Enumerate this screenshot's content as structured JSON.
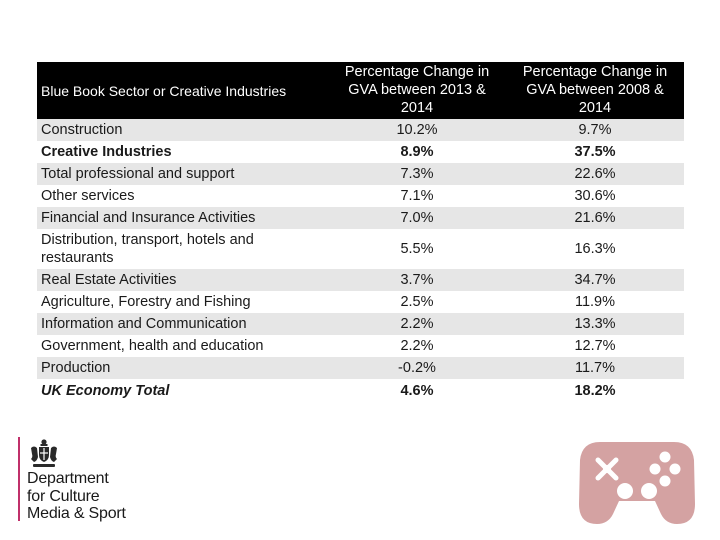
{
  "table": {
    "headers": [
      "Blue Book Sector or Creative Industries",
      "Percentage Change in GVA between 2013 & 2014",
      "Percentage Change in GVA between 2008 & 2014"
    ],
    "rows": [
      {
        "sector": "Construction",
        "change_2013_2014": "10.2%",
        "change_2008_2014": "9.7%"
      },
      {
        "sector": "Creative Industries",
        "change_2013_2014": "8.9%",
        "change_2008_2014": "37.5%"
      },
      {
        "sector": "Total professional and support",
        "change_2013_2014": "7.3%",
        "change_2008_2014": "22.6%"
      },
      {
        "sector": "Other services",
        "change_2013_2014": "7.1%",
        "change_2008_2014": "30.6%"
      },
      {
        "sector": "Financial and Insurance Activities",
        "change_2013_2014": "7.0%",
        "change_2008_2014": "21.6%"
      },
      {
        "sector": "Distribution, transport, hotels and restaurants",
        "change_2013_2014": "5.5%",
        "change_2008_2014": "16.3%"
      },
      {
        "sector": "Real Estate Activities",
        "change_2013_2014": "3.7%",
        "change_2008_2014": "34.7%"
      },
      {
        "sector": "Agriculture, Forestry and Fishing",
        "change_2013_2014": "2.5%",
        "change_2008_2014": "11.9%"
      },
      {
        "sector": "Information and Communication",
        "change_2013_2014": "2.2%",
        "change_2008_2014": "13.3%"
      },
      {
        "sector": "Government, health and education",
        "change_2013_2014": "2.2%",
        "change_2008_2014": "12.7%"
      },
      {
        "sector": "Production",
        "change_2013_2014": "-0.2%",
        "change_2008_2014": "11.7%"
      },
      {
        "sector": "UK Economy Total",
        "change_2013_2014": "4.6%",
        "change_2008_2014": "18.2%"
      }
    ]
  },
  "logo": {
    "line1": "Department",
    "line2": "for Culture",
    "line3": "Media & Sport",
    "accent_color": "#c0306a"
  },
  "decoration": {
    "icon": "gamepad-icon",
    "color": "#d4a2a2"
  }
}
